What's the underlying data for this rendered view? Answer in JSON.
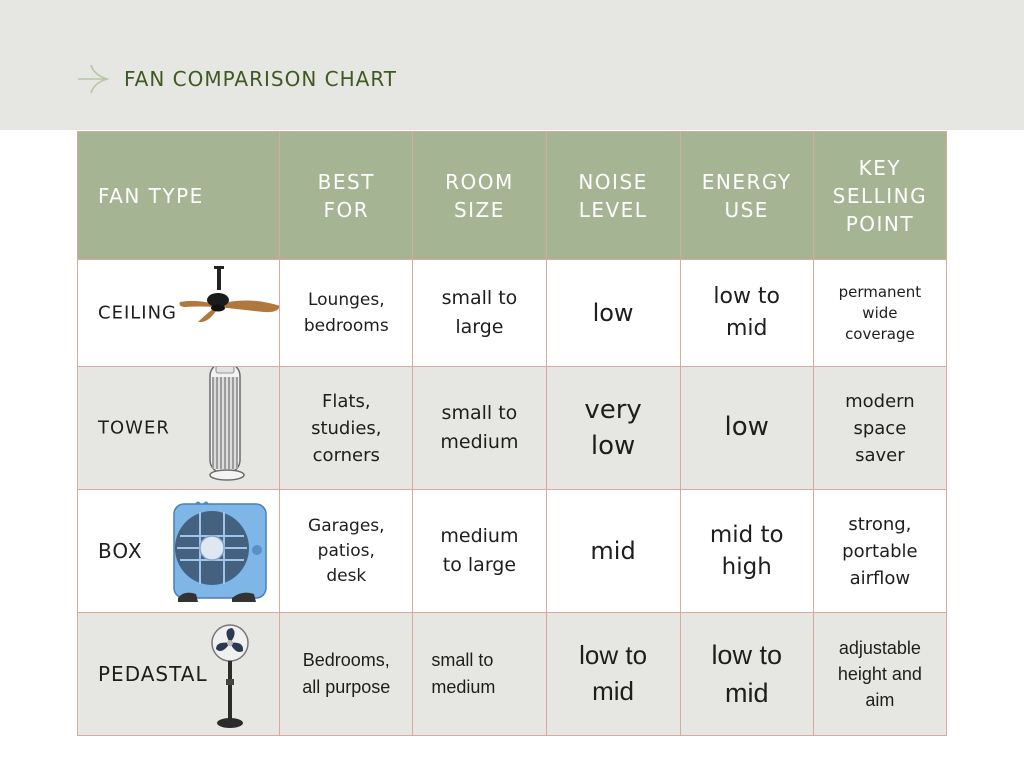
{
  "header": {
    "title": "FAN COMPARISON CHART",
    "icon": "arrow-icon",
    "background": "#e6e6e2",
    "title_color": "#3e5a22"
  },
  "table": {
    "header_color": "#a5b593",
    "border_color": "#d8a99c",
    "columns": [
      "FAN TYPE",
      "BEST\nFOR",
      "ROOM\nSIZE",
      "NOISE\nLEVEL",
      "ENERGY\nUSE",
      "KEY\nSELLING\nPOINT"
    ],
    "rows": [
      {
        "type": "CEILING",
        "icon": "ceiling-fan-icon",
        "best_for": "Lounges,\nbedrooms",
        "room_size": "small to\nlarge",
        "noise": "low",
        "energy": "low to\nmid",
        "key_point": "permanent\nwide\ncoverage"
      },
      {
        "type": "TOWER",
        "icon": "tower-fan-icon",
        "best_for": "Flats,\nstudies,\ncorners",
        "room_size": "small to\nmedium",
        "noise": "very\nlow",
        "energy": "low",
        "key_point": "modern\nspace\nsaver"
      },
      {
        "type": "BOX",
        "icon": "box-fan-icon",
        "best_for": "Garages,\npatios,\ndesk",
        "room_size": "medium\nto large",
        "noise": "mid",
        "energy": "mid to\nhigh",
        "key_point": "strong,\nportable\nairflow"
      },
      {
        "type": "PEDASTAL",
        "icon": "pedestal-fan-icon",
        "best_for": "Bedrooms,\nall purpose",
        "room_size": "small to\nmedium",
        "noise": "low to\nmid",
        "energy": "low to\nmid",
        "key_point": "adjustable\nheight and\naim"
      }
    ]
  }
}
